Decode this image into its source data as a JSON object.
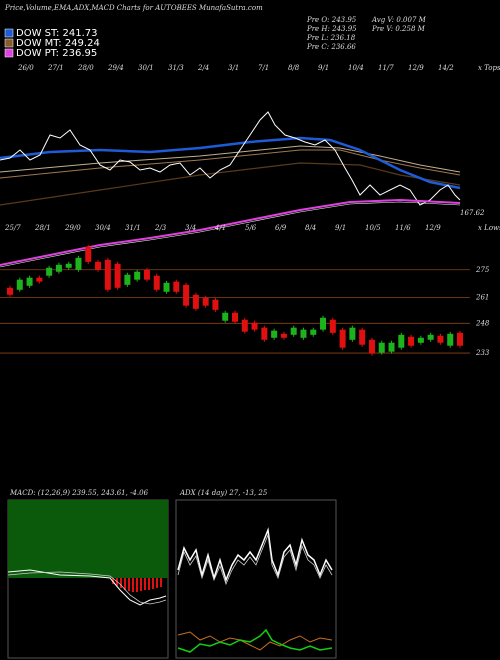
{
  "header": {
    "title": "Price,Volume,EMA,ADX,MACD Charts for AUTOBEES MunafaSutra.com"
  },
  "legend": [
    {
      "name": "DOW ST: 241.73",
      "color": "#1e5bd6"
    },
    {
      "name": "DOW MT: 249.24",
      "color": "#8b5a2b"
    },
    {
      "name": "DOW PT: 236.95",
      "color": "#e040e0"
    }
  ],
  "stats": [
    [
      "Pre  O: 243.95",
      "Avg V: 0.007  M"
    ],
    [
      "Pre  H: 243.95",
      "Pre  V: 0.258  M"
    ],
    [
      "Pre  L: 236.18"
    ],
    [
      "Pre  C: 236.66"
    ]
  ],
  "chart_data": [
    {
      "type": "candlestick",
      "open": [
        265.9,
        264.9,
        266.9,
        271.0,
        272.0,
        274.0,
        276.0,
        275.0,
        286.6,
        279.0,
        280.0,
        278.0,
        267.4,
        270.0,
        275.0,
        272.0,
        263.9,
        269.0,
        267.4,
        262.4,
        260.9,
        259.9,
        249.3,
        253.3,
        249.8,
        248.3,
        245.8,
        240.7,
        242.7,
        242.2,
        240.7,
        242.2,
        244.8,
        249.8,
        244.8,
        239.7,
        244.8,
        239.7,
        233.2,
        233.7,
        235.7,
        241.2,
        238.2,
        239.7,
        241.7,
        236.7,
        243.2
      ],
      "close": [
        262.4,
        270.0,
        271.0,
        269.0,
        276.0,
        277.5,
        278.0,
        281.0,
        279.0,
        275.0,
        264.9,
        265.9,
        272.5,
        274.0,
        270.0,
        264.9,
        268.4,
        263.9,
        256.9,
        255.3,
        256.9,
        254.8,
        253.3,
        248.8,
        243.8,
        244.8,
        239.7,
        244.3,
        240.7,
        245.8,
        244.8,
        244.8,
        250.8,
        243.2,
        235.7,
        245.8,
        237.2,
        232.7,
        238.2,
        238.2,
        242.2,
        236.7,
        240.7,
        242.2,
        238.2,
        242.7,
        236.7
      ],
      "up_color": "#1db31d",
      "down_color": "#e01010",
      "ylim": [
        169,
        411
      ],
      "yticks": [
        275,
        261,
        248,
        233
      ],
      "top_labels": [
        "26/0",
        "27/1",
        "28/0",
        "29/4",
        "30/1",
        "31/3",
        "2/4",
        "3/1",
        "7/1",
        "8/8",
        "9/1",
        "10/4",
        "11/7",
        "12/9",
        "14/2"
      ],
      "bottom_labels": [
        "25/7",
        "28/1",
        "29/0",
        "30/4",
        "31/1",
        "2/3",
        "3/4",
        "4/1",
        "5/6",
        "6/9",
        "8/4",
        "9/1",
        "10/5",
        "11/6",
        "12/9"
      ],
      "tops_label": "x Tops",
      "lows_label": "x Lows",
      "last_value": 167.62
    },
    {
      "type": "macd",
      "label": "MACD: (12,26,9) 239.55, 243.61, -4.06"
    },
    {
      "type": "adx",
      "label": "ADX (14 day) 27, -13, 25"
    }
  ]
}
